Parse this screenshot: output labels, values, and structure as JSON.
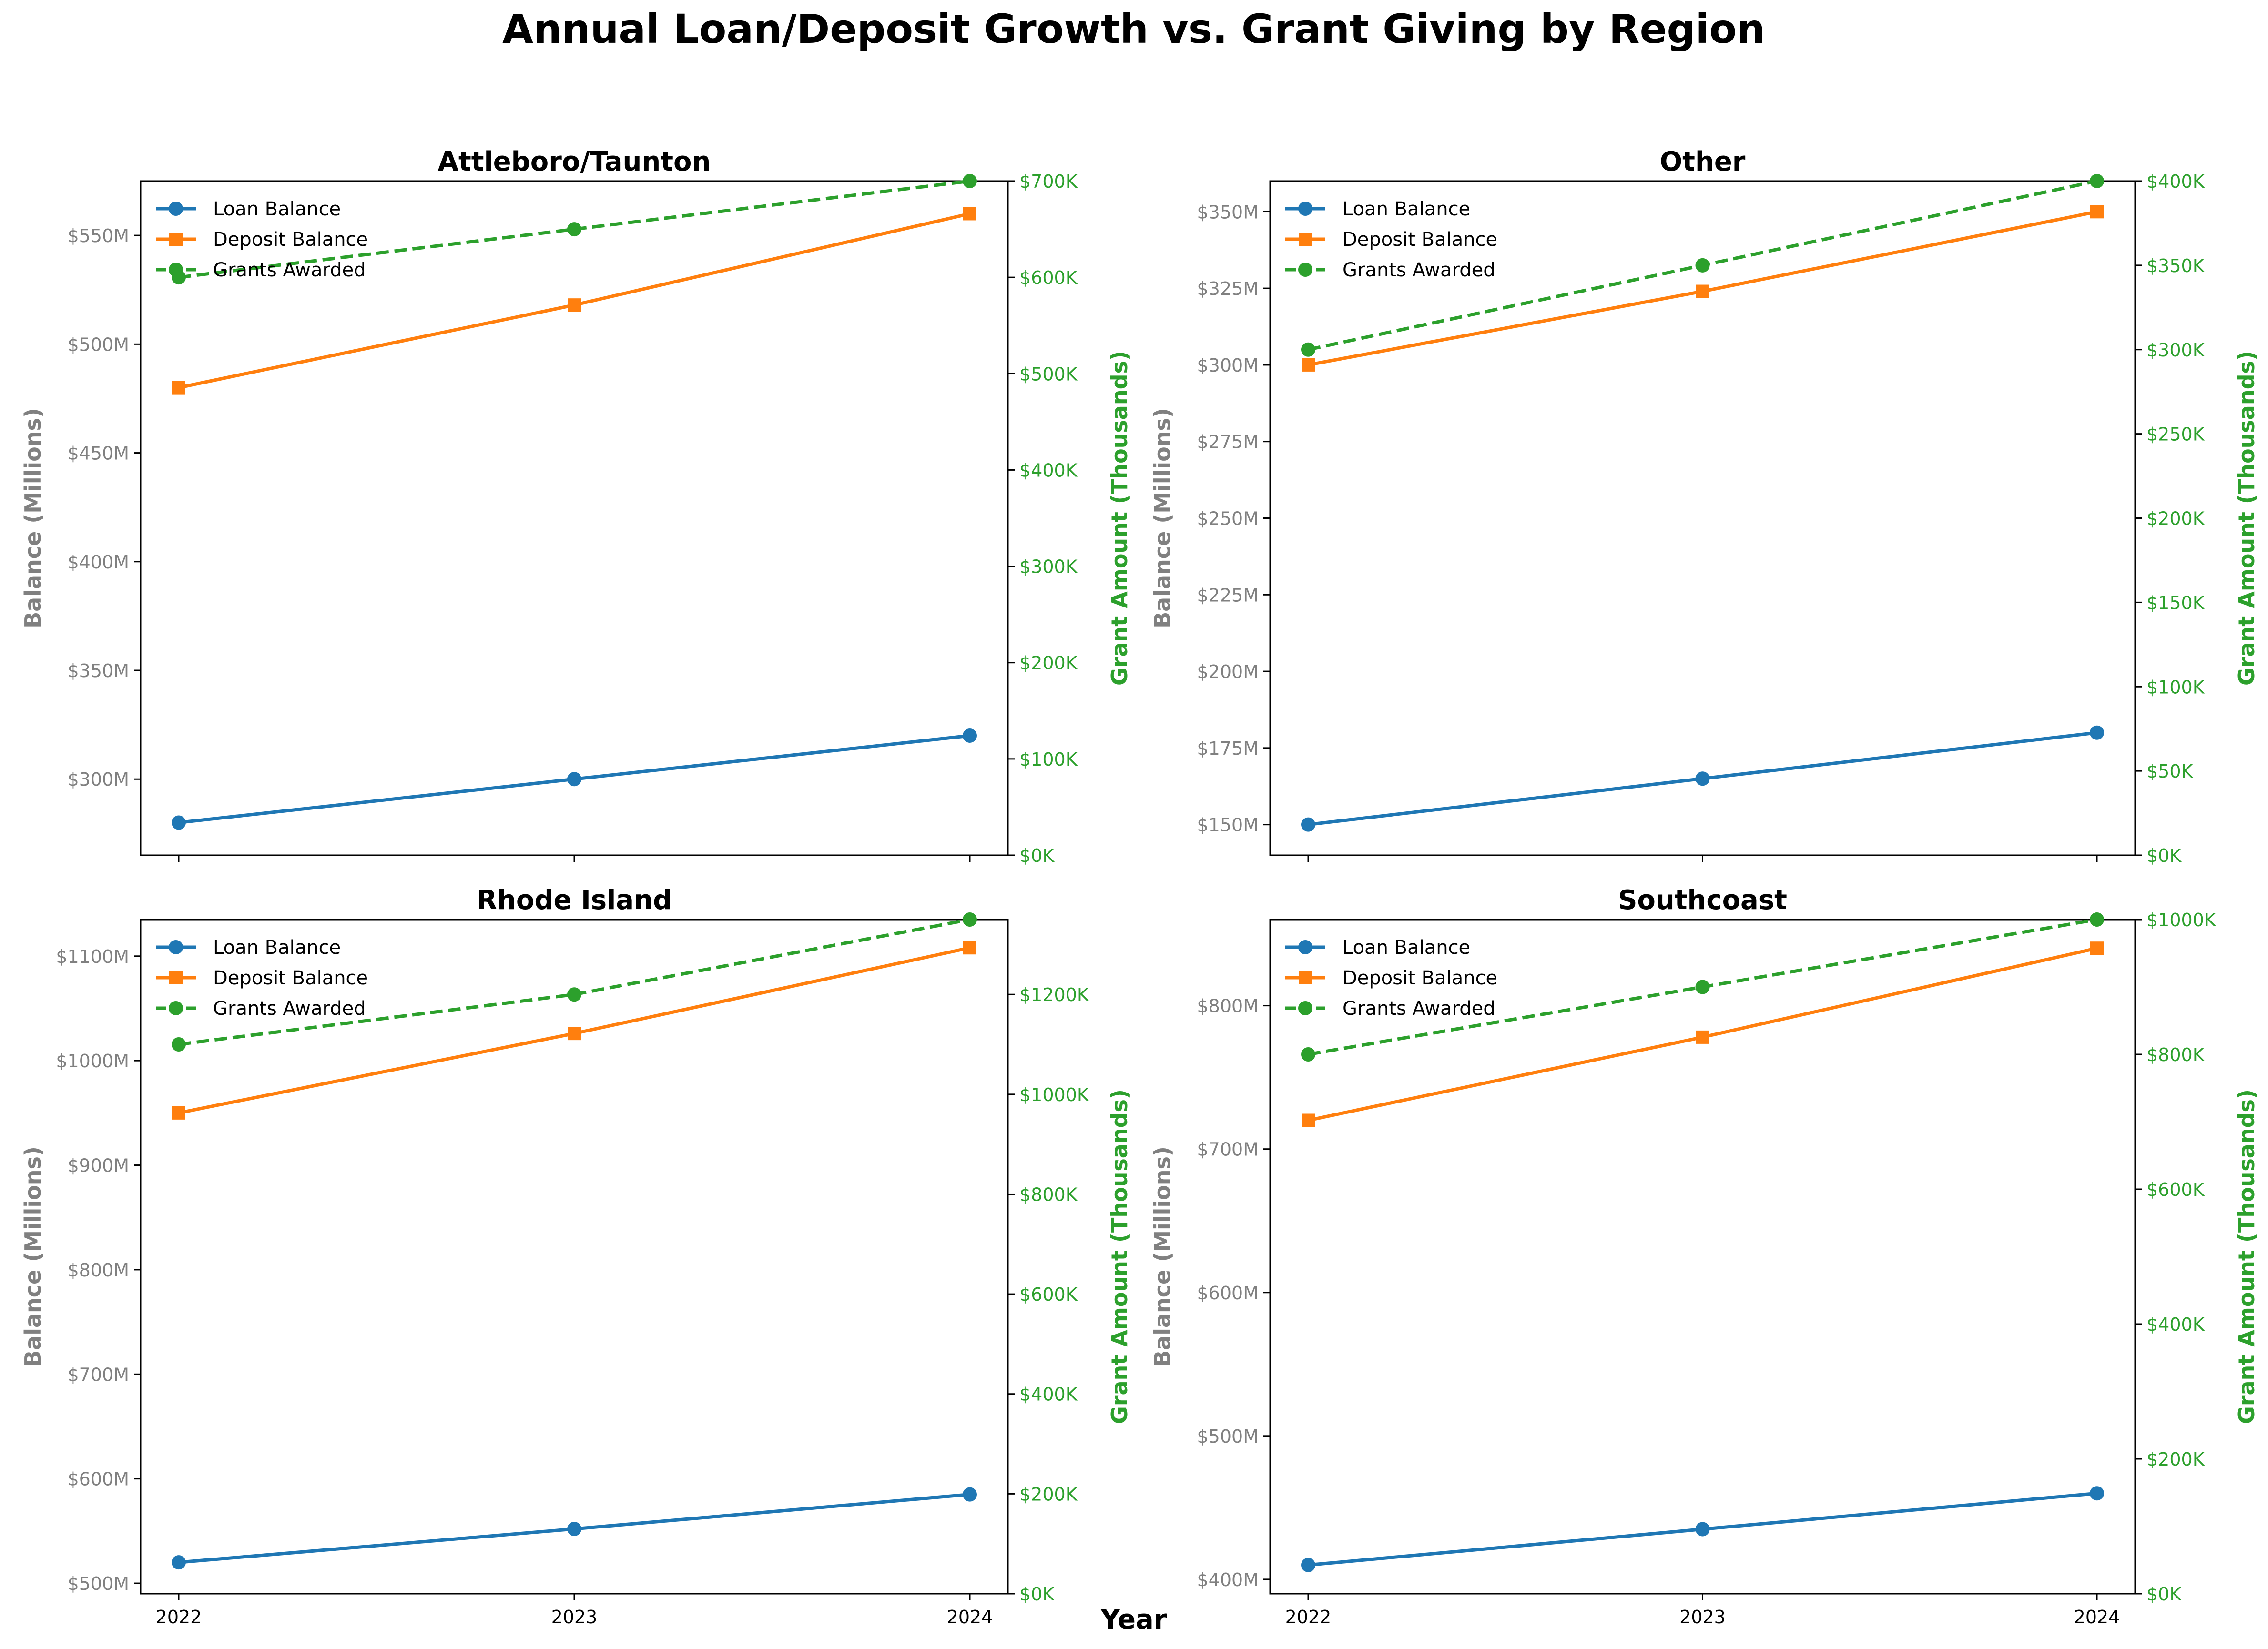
{
  "title": "Annual Loan/Deposit Growth vs. Grant Giving by Region",
  "x_label": "Year",
  "left_axis_label": "Balance (Millions)",
  "right_axis_label": "Grant Amount (Thousands)",
  "colors": {
    "loan": "#1f77b4",
    "deposit": "#ff7f0e",
    "grants": "#2ca02c",
    "left_tick": "#808080",
    "right_tick": "#2ca02c"
  },
  "chart_data": [
    {
      "type": "line",
      "title": "Attleboro/Taunton",
      "x": [
        "2022",
        "2023",
        "2024"
      ],
      "series": [
        {
          "name": "Loan Balance",
          "axis": "left",
          "marker": "circle",
          "values": [
            280,
            300,
            320
          ]
        },
        {
          "name": "Deposit Balance",
          "axis": "left",
          "marker": "square",
          "values": [
            480,
            518,
            560
          ]
        },
        {
          "name": "Grants Awarded",
          "axis": "right",
          "marker": "circle",
          "dashed": true,
          "values": [
            600,
            650,
            700
          ]
        }
      ],
      "ylim_left": [
        265,
        575
      ],
      "yticks_left": [
        300,
        350,
        400,
        450,
        500,
        550
      ],
      "yticklabels_left": [
        "$300M",
        "$350M",
        "$400M",
        "$450M",
        "$500M",
        "$550M"
      ],
      "ylim_right": [
        0,
        700
      ],
      "yticks_right": [
        0,
        100,
        200,
        300,
        400,
        500,
        600,
        700
      ],
      "yticklabels_right": [
        "$0K",
        "$100K",
        "$200K",
        "$300K",
        "$400K",
        "$500K",
        "$600K",
        "$700K"
      ],
      "show_xticks": false,
      "legend": "top-left"
    },
    {
      "type": "line",
      "title": "Other",
      "x": [
        "2022",
        "2023",
        "2024"
      ],
      "series": [
        {
          "name": "Loan Balance",
          "axis": "left",
          "marker": "circle",
          "values": [
            150,
            165,
            180
          ]
        },
        {
          "name": "Deposit Balance",
          "axis": "left",
          "marker": "square",
          "values": [
            300,
            324,
            350
          ]
        },
        {
          "name": "Grants Awarded",
          "axis": "right",
          "marker": "circle",
          "dashed": true,
          "values": [
            300,
            350,
            400
          ]
        }
      ],
      "ylim_left": [
        140,
        360
      ],
      "yticks_left": [
        150,
        175,
        200,
        225,
        250,
        275,
        300,
        325,
        350
      ],
      "yticklabels_left": [
        "$150M",
        "$175M",
        "$200M",
        "$225M",
        "$250M",
        "$275M",
        "$300M",
        "$325M",
        "$350M"
      ],
      "ylim_right": [
        0,
        400
      ],
      "yticks_right": [
        0,
        50,
        100,
        150,
        200,
        250,
        300,
        350,
        400
      ],
      "yticklabels_right": [
        "$0K",
        "$50K",
        "$100K",
        "$150K",
        "$200K",
        "$250K",
        "$300K",
        "$350K",
        "$400K"
      ],
      "show_xticks": false,
      "legend": "top-left"
    },
    {
      "type": "line",
      "title": "Rhode Island",
      "x": [
        "2022",
        "2023",
        "2024"
      ],
      "series": [
        {
          "name": "Loan Balance",
          "axis": "left",
          "marker": "circle",
          "values": [
            520,
            552,
            585
          ]
        },
        {
          "name": "Deposit Balance",
          "axis": "left",
          "marker": "square",
          "values": [
            950,
            1026,
            1108
          ]
        },
        {
          "name": "Grants Awarded",
          "axis": "right",
          "marker": "circle",
          "dashed": true,
          "values": [
            1100,
            1200,
            1350
          ]
        }
      ],
      "ylim_left": [
        490,
        1135
      ],
      "yticks_left": [
        500,
        600,
        700,
        800,
        900,
        1000,
        1100
      ],
      "yticklabels_left": [
        "$500M",
        "$600M",
        "$700M",
        "$800M",
        "$900M",
        "$1000M",
        "$1100M"
      ],
      "ylim_right": [
        0,
        1350
      ],
      "yticks_right": [
        0,
        200,
        400,
        600,
        800,
        1000,
        1200
      ],
      "yticklabels_right": [
        "$0K",
        "$200K",
        "$400K",
        "$600K",
        "$800K",
        "$1000K",
        "$1200K"
      ],
      "show_xticks": true,
      "legend": "top-left"
    },
    {
      "type": "line",
      "title": "Southcoast",
      "x": [
        "2022",
        "2023",
        "2024"
      ],
      "series": [
        {
          "name": "Loan Balance",
          "axis": "left",
          "marker": "circle",
          "values": [
            410,
            435,
            460
          ]
        },
        {
          "name": "Deposit Balance",
          "axis": "left",
          "marker": "square",
          "values": [
            720,
            778,
            840
          ]
        },
        {
          "name": "Grants Awarded",
          "axis": "right",
          "marker": "circle",
          "dashed": true,
          "values": [
            800,
            900,
            1000
          ]
        }
      ],
      "ylim_left": [
        390,
        860
      ],
      "yticks_left": [
        400,
        500,
        600,
        700,
        800
      ],
      "yticklabels_left": [
        "$400M",
        "$500M",
        "$600M",
        "$700M",
        "$800M"
      ],
      "ylim_right": [
        0,
        1000
      ],
      "yticks_right": [
        0,
        200,
        400,
        600,
        800,
        1000
      ],
      "yticklabels_right": [
        "$0K",
        "$200K",
        "$400K",
        "$600K",
        "$800K",
        "$1000K"
      ],
      "show_xticks": true,
      "legend": "top-left"
    }
  ]
}
